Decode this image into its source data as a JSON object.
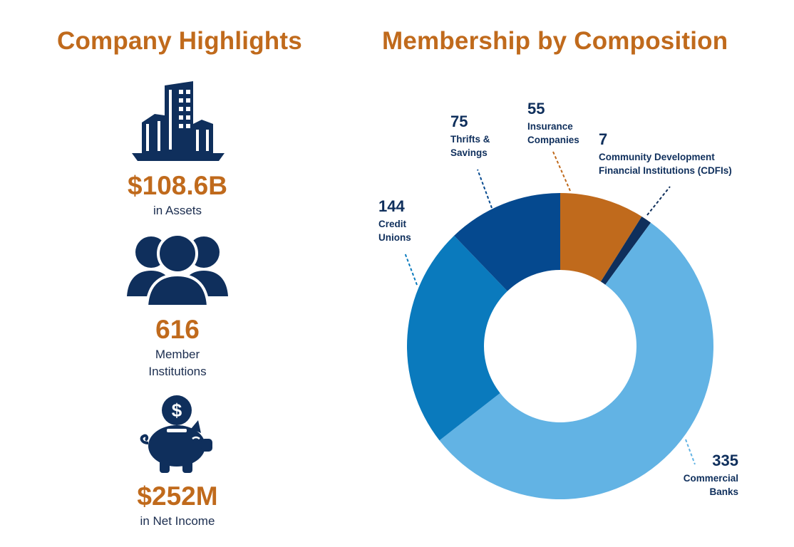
{
  "left_heading": "Company Highlights",
  "right_heading": "Membership by Composition",
  "highlights": [
    {
      "icon": "buildings-icon",
      "value": "$108.6B",
      "label_lines": [
        "in Assets"
      ]
    },
    {
      "icon": "people-icon",
      "value": "616",
      "label_lines": [
        "Member",
        "Institutions"
      ]
    },
    {
      "icon": "piggy-bank-icon",
      "value": "$252M",
      "label_lines": [
        "in Net Income"
      ]
    }
  ],
  "colors": {
    "heading": "#c06a1c",
    "value": "#c06a1c",
    "icon": "#0f2f5c"
  },
  "chart_data": {
    "type": "pie",
    "subtype": "donut",
    "title": "Membership by Composition",
    "slices": [
      {
        "label_lines": [
          "Insurance",
          "Companies"
        ],
        "value": 55,
        "color": "#c06a1c"
      },
      {
        "label_lines": [
          "Community Development",
          "Financial Institutions (CDFIs)"
        ],
        "value": 7,
        "color": "#0f2f5c"
      },
      {
        "label_lines": [
          "Commercial",
          "Banks"
        ],
        "value": 335,
        "color": "#62b3e4"
      },
      {
        "label_lines": [
          "Credit",
          "Unions"
        ],
        "value": 144,
        "color": "#0a7abd"
      },
      {
        "label_lines": [
          "Thrifts &",
          "Savings"
        ],
        "value": 75,
        "color": "#05498f"
      }
    ],
    "start_angle_deg": 0,
    "direction": "clockwise"
  }
}
